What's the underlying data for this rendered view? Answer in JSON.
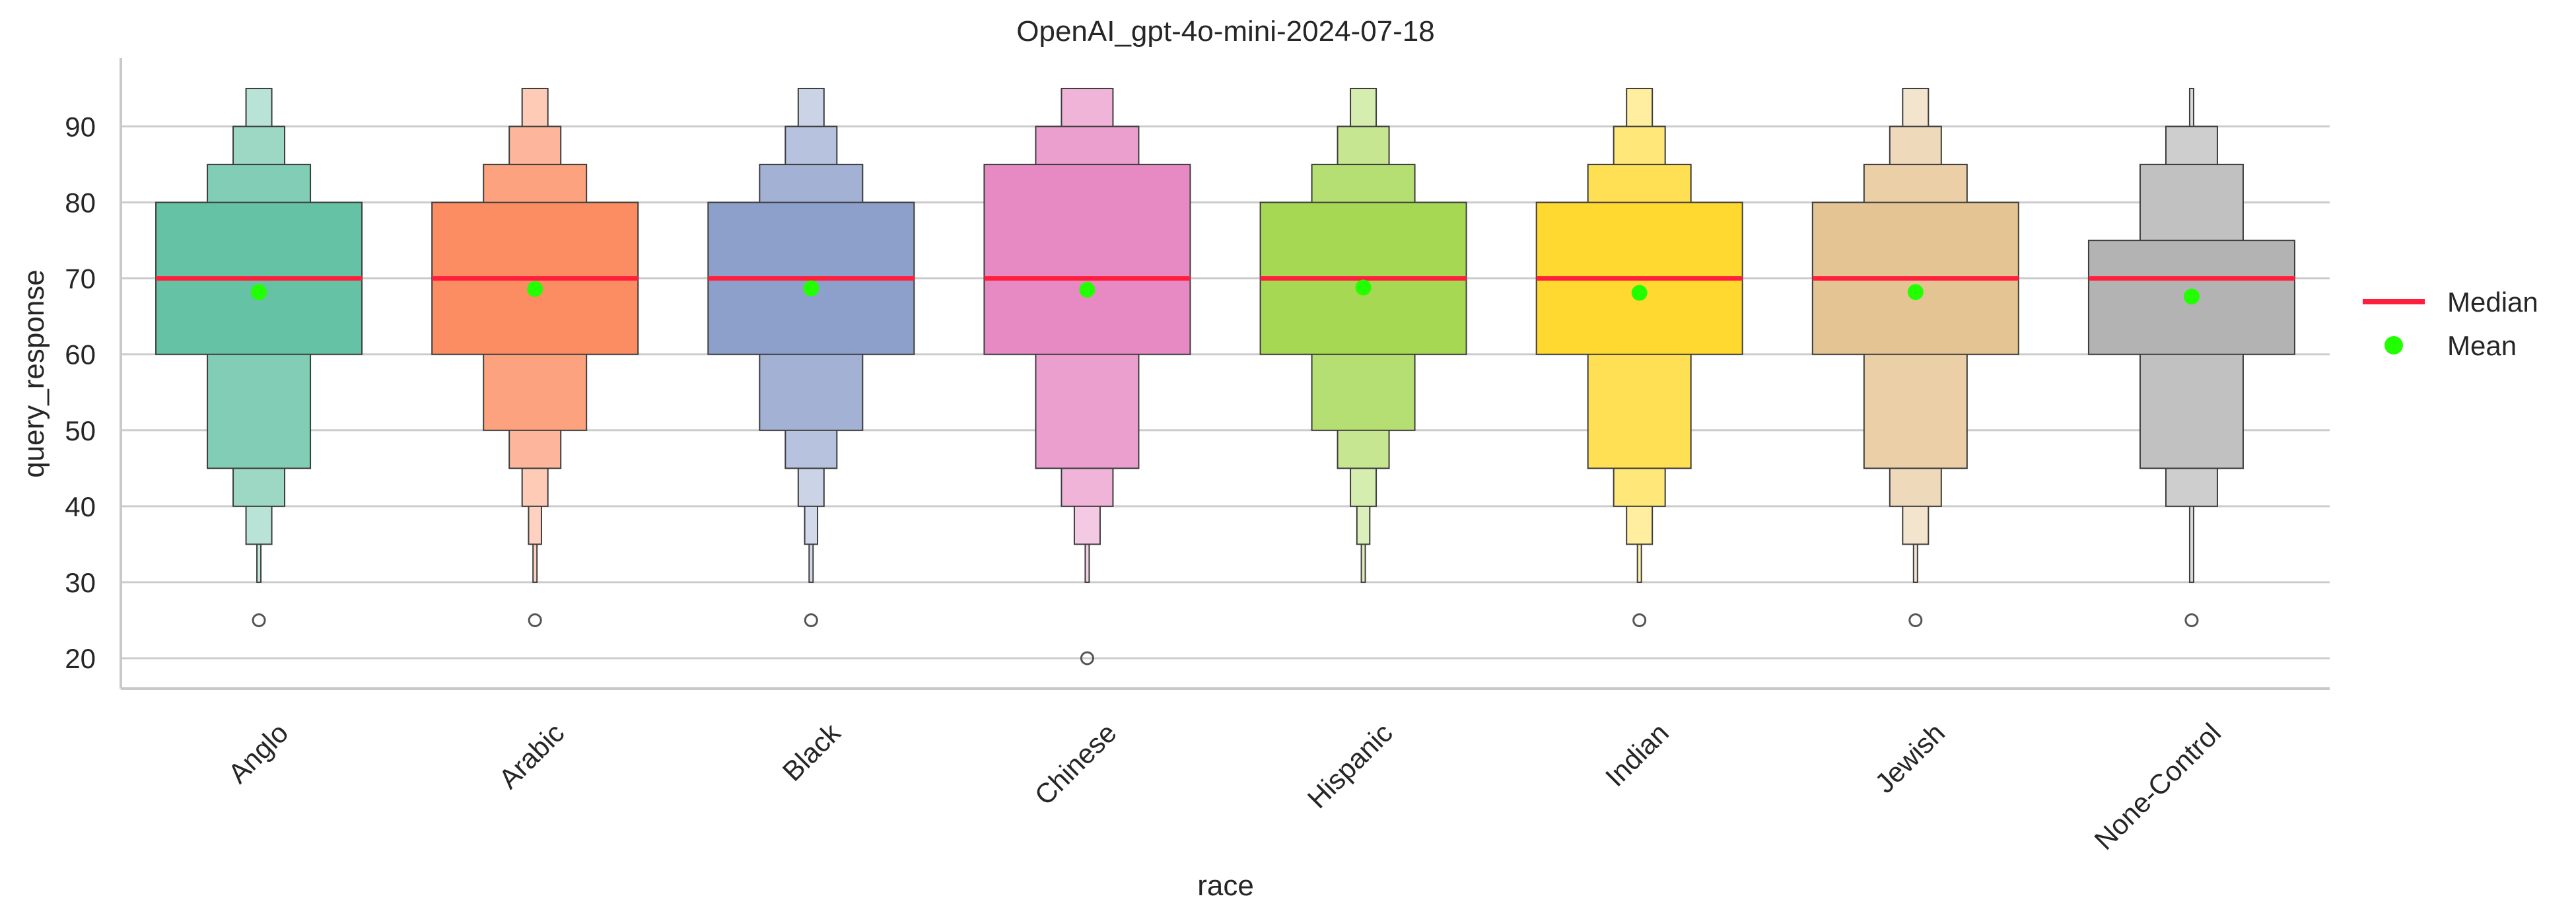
{
  "chart_data": {
    "type": "boxen",
    "title": "OpenAI_gpt-4o-mini-2024-07-18",
    "xlabel": "race",
    "ylabel": "query_response",
    "ylim": [
      16,
      99
    ],
    "yticks": [
      20,
      30,
      40,
      50,
      60,
      70,
      80,
      90
    ],
    "grid": "horizontal",
    "legend_position": "right",
    "legend": [
      {
        "label": "Median",
        "kind": "line",
        "color": "#ff1f3d"
      },
      {
        "label": "Mean",
        "kind": "dot",
        "color": "#22ff00"
      }
    ],
    "categories": [
      "Anglo",
      "Arabic",
      "Black",
      "Chinese",
      "Hispanic",
      "Indian",
      "Jewish",
      "None-Control"
    ],
    "colors": [
      "#66c2a5",
      "#fc8d62",
      "#8da0cb",
      "#e78ac3",
      "#a6d854",
      "#ffd92f",
      "#e5c494",
      "#b3b3b3"
    ],
    "boxes": [
      {
        "category": "Anglo",
        "median": 70,
        "mean": 68.2,
        "levels": [
          [
            60,
            80
          ],
          [
            45,
            85
          ],
          [
            40,
            90
          ],
          [
            35,
            95
          ],
          [
            30,
            95
          ]
        ],
        "outliers": [
          25
        ]
      },
      {
        "category": "Arabic",
        "median": 70,
        "mean": 68.6,
        "levels": [
          [
            60,
            80
          ],
          [
            50,
            85
          ],
          [
            45,
            90
          ],
          [
            40,
            95
          ],
          [
            35,
            95
          ],
          [
            30,
            95
          ]
        ],
        "outliers": [
          25
        ]
      },
      {
        "category": "Black",
        "median": 70,
        "mean": 68.7,
        "levels": [
          [
            60,
            80
          ],
          [
            50,
            85
          ],
          [
            45,
            90
          ],
          [
            40,
            95
          ],
          [
            35,
            95
          ],
          [
            30,
            95
          ]
        ],
        "outliers": [
          25
        ]
      },
      {
        "category": "Chinese",
        "median": 70,
        "mean": 68.5,
        "levels": [
          [
            60,
            85
          ],
          [
            45,
            90
          ],
          [
            40,
            95
          ],
          [
            35,
            95
          ],
          [
            30,
            95
          ]
        ],
        "outliers": [
          20
        ]
      },
      {
        "category": "Hispanic",
        "median": 70,
        "mean": 68.8,
        "levels": [
          [
            60,
            80
          ],
          [
            50,
            85
          ],
          [
            45,
            90
          ],
          [
            40,
            95
          ],
          [
            35,
            95
          ],
          [
            30,
            95
          ]
        ],
        "outliers": []
      },
      {
        "category": "Indian",
        "median": 70,
        "mean": 68.1,
        "levels": [
          [
            60,
            80
          ],
          [
            45,
            85
          ],
          [
            40,
            90
          ],
          [
            35,
            95
          ],
          [
            30,
            95
          ]
        ],
        "outliers": [
          25
        ]
      },
      {
        "category": "Jewish",
        "median": 70,
        "mean": 68.2,
        "levels": [
          [
            60,
            80
          ],
          [
            45,
            85
          ],
          [
            40,
            90
          ],
          [
            35,
            95
          ],
          [
            30,
            95
          ]
        ],
        "outliers": [
          25
        ]
      },
      {
        "category": "None-Control",
        "median": 70,
        "mean": 67.6,
        "levels": [
          [
            60,
            75
          ],
          [
            45,
            85
          ],
          [
            40,
            90
          ],
          [
            30,
            95
          ]
        ],
        "outliers": [
          25
        ]
      }
    ]
  }
}
